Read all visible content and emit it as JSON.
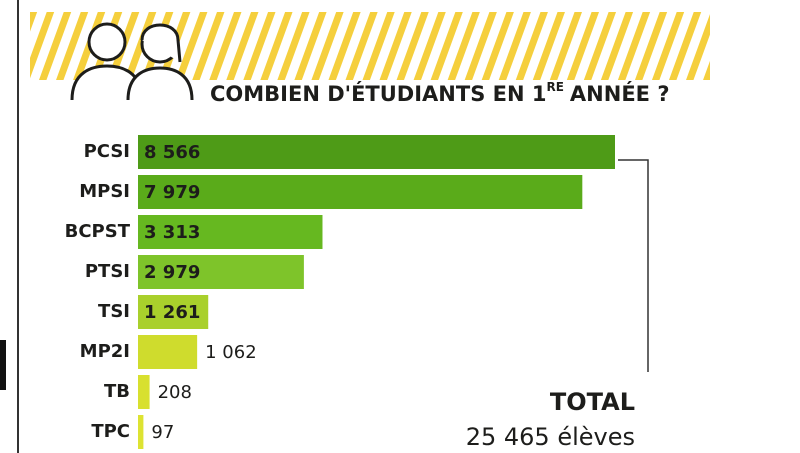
{
  "chart_data": {
    "type": "bar",
    "orientation": "horizontal",
    "title": [
      "COMBIEN D'ÉTUDIANTS EN 1",
      "RE",
      "ANNÉE ?"
    ],
    "categories": [
      "PCSI",
      "MPSI",
      "BCPST",
      "PTSI",
      "TSI",
      "MP2I",
      "TB",
      "TPC"
    ],
    "values": [
      8566,
      7979,
      3313,
      2979,
      1261,
      1062,
      208,
      97
    ],
    "value_labels": [
      "8 566",
      "7 979",
      "3 313",
      "2 979",
      "1 261",
      "1 062",
      "208",
      "97"
    ],
    "colors": [
      "#4e9b17",
      "#5aab1a",
      "#66b820",
      "#7ec42a",
      "#a9d02c",
      "#cfdc2d",
      "#d8e02f",
      "#dde332"
    ],
    "total_label": "TOTAL",
    "total_text": "25 465 élèves"
  }
}
